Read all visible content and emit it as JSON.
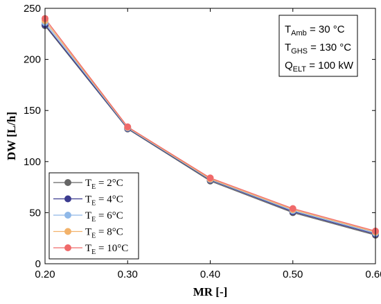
{
  "chart_data": {
    "type": "line",
    "xlabel": "MR [-]",
    "ylabel": "DW [L/h]",
    "xlim": [
      0.2,
      0.6
    ],
    "ylim": [
      0,
      250
    ],
    "x": [
      0.2,
      0.3,
      0.4,
      0.5,
      0.6
    ],
    "x_tick_labels": [
      "0.20",
      "0.30",
      "0.40",
      "0.50",
      "0.60"
    ],
    "y_ticks": [
      0,
      50,
      100,
      150,
      200,
      250
    ],
    "grid": false,
    "legend_position": "bottom-left",
    "series": [
      {
        "name": "TE = 2°C",
        "label_main": "T",
        "label_sub": "E",
        "label_rest": " = 2°C",
        "color": "#666666",
        "values": [
          233,
          132,
          81,
          50,
          28
        ]
      },
      {
        "name": "TE = 4°C",
        "label_main": "T",
        "label_sub": "E",
        "label_rest": " = 4°C",
        "color": "#3b3b8f",
        "values": [
          234,
          132.5,
          82,
          51,
          29
        ]
      },
      {
        "name": "TE = 6°C",
        "label_main": "T",
        "label_sub": "E",
        "label_rest": " = 6°C",
        "color": "#8fb8e8",
        "values": [
          236,
          133,
          82.5,
          52,
          30
        ]
      },
      {
        "name": "TE = 8°C",
        "label_main": "T",
        "label_sub": "E",
        "label_rest": " = 8°C",
        "color": "#f2b26a",
        "values": [
          238,
          133.5,
          83,
          53,
          31
        ]
      },
      {
        "name": "TE = 10°C",
        "label_main": "T",
        "label_sub": "E",
        "label_rest": " = 10°C",
        "color": "#f06a6a",
        "values": [
          240,
          134,
          84,
          54,
          32
        ]
      }
    ],
    "annotation": [
      {
        "main": "T",
        "sub": "Amb",
        "rest": " = 30 °C"
      },
      {
        "main": "T",
        "sub": "GHS",
        "rest": " = 130 °C"
      },
      {
        "main": "Q",
        "sub": "ELT",
        "rest": " = 100 kW"
      }
    ]
  }
}
